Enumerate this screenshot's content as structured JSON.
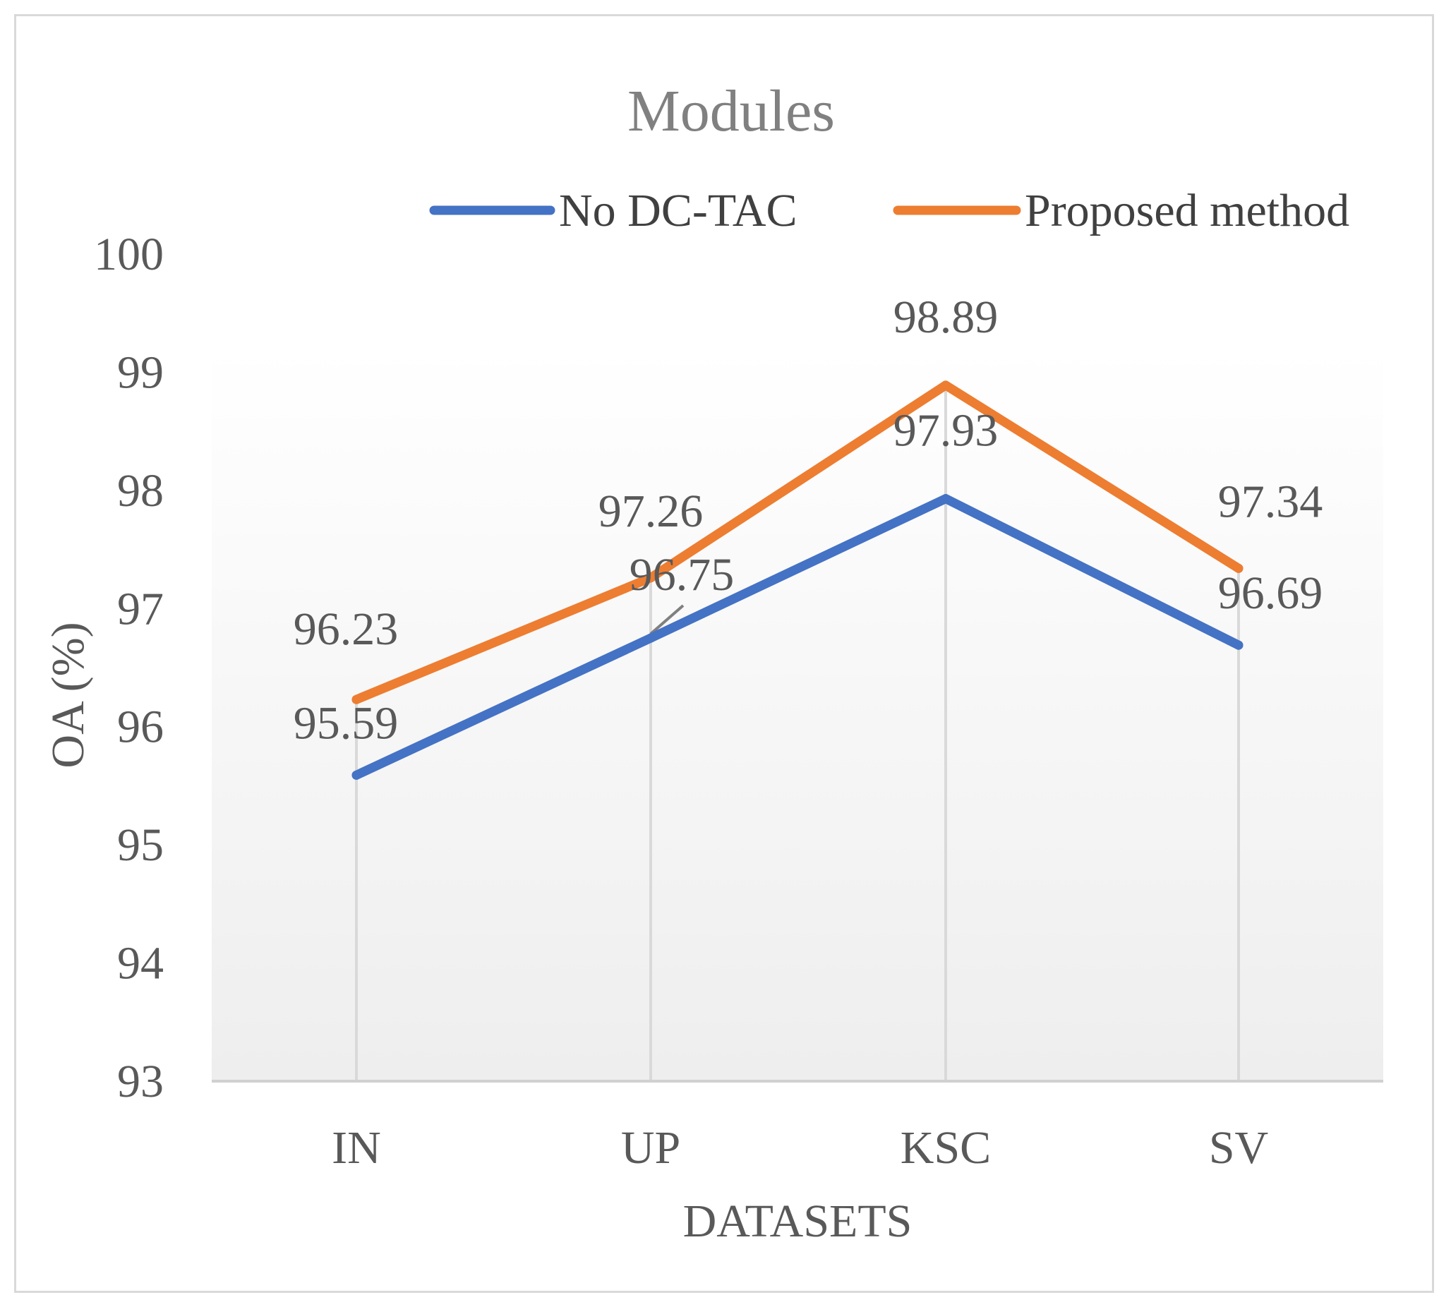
{
  "chart_data": {
    "type": "line",
    "title": "Modules",
    "xlabel": "DATASETS",
    "ylabel": "OA (%)",
    "categories": [
      "IN",
      "UP",
      "KSC",
      "SV"
    ],
    "ylim": [
      93,
      100
    ],
    "yticks": [
      "93",
      "94",
      "95",
      "96",
      "97",
      "98",
      "99",
      "100"
    ],
    "legend_position": "top-right",
    "series": [
      {
        "name": "No DC-TAC",
        "color": "#4472c4",
        "values": [
          95.59,
          96.75,
          97.93,
          96.69
        ],
        "labels": [
          "95.59",
          "96.75",
          "97.93",
          "96.69"
        ]
      },
      {
        "name": "Proposed method",
        "color": "#ed7d31",
        "values": [
          96.23,
          97.26,
          98.89,
          97.34
        ],
        "labels": [
          "96.23",
          "97.26",
          "98.89",
          "97.34"
        ]
      }
    ]
  }
}
